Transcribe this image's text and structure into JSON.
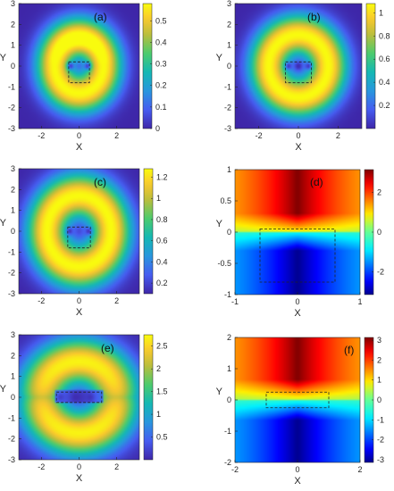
{
  "chart_data": [
    {
      "panel_label": "(a)",
      "type": "heatmap",
      "field": "ring",
      "xlabel": "X",
      "ylabel": "Y",
      "xlim": [
        -3.2,
        3.2
      ],
      "ylim": [
        -3,
        3
      ],
      "xticks": [
        -2,
        0,
        2
      ],
      "yticks": [
        -3,
        -2,
        -1,
        0,
        1,
        2,
        3
      ],
      "colorbar": {
        "range": [
          0,
          0.58
        ],
        "ticks": [
          0,
          0.1,
          0.2,
          0.3,
          0.4,
          0.5
        ],
        "tick_labels": [
          "0",
          "0.1",
          "0.2",
          "0.3",
          "0.4",
          "0.5"
        ],
        "colormap": "parula"
      },
      "peak_radius": 1.3,
      "ring_width": 1.0,
      "top_boost": 0.2,
      "holes": [
        [
          -0.45,
          0
        ],
        [
          0.45,
          0
        ]
      ],
      "dashed_box": {
        "x": [
          -0.55,
          0.55
        ],
        "y": [
          -0.8,
          0.2
        ]
      }
    },
    {
      "panel_label": "(b)",
      "type": "heatmap",
      "field": "ring",
      "xlabel": "X",
      "ylabel": "Y",
      "xlim": [
        -3.2,
        3.2
      ],
      "ylim": [
        -3,
        3
      ],
      "xticks": [
        -2,
        0,
        2
      ],
      "yticks": [
        -3,
        -2,
        -1,
        0,
        1,
        2,
        3
      ],
      "colorbar": {
        "range": [
          0,
          1.08
        ],
        "ticks": [
          0.2,
          0.4,
          0.6,
          0.8,
          1
        ],
        "tick_labels": [
          "0.2",
          "0.4",
          "0.6",
          "0.8",
          "1"
        ],
        "colormap": "parula"
      },
      "peak_radius": 1.5,
      "ring_width": 1.0,
      "top_boost": 0.0,
      "holes": [
        [
          -0.5,
          0
        ],
        [
          0,
          0
        ],
        [
          0.5,
          0
        ]
      ],
      "dashed_box": {
        "x": [
          -0.65,
          0.65
        ],
        "y": [
          -0.8,
          0.2
        ]
      }
    },
    {
      "panel_label": "(c)",
      "type": "heatmap",
      "field": "ring",
      "xlabel": "X",
      "ylabel": "Y",
      "xlim": [
        -3.2,
        3.2
      ],
      "ylim": [
        -3,
        3
      ],
      "xticks": [
        -2,
        0,
        2
      ],
      "yticks": [
        -3,
        -2,
        -1,
        0,
        1,
        2,
        3
      ],
      "colorbar": {
        "range": [
          0.1,
          1.28
        ],
        "ticks": [
          0.2,
          0.4,
          0.6,
          0.8,
          1,
          1.2
        ],
        "tick_labels": [
          "0.2",
          "0.4",
          "0.6",
          "0.8",
          "1",
          "1.2"
        ],
        "colormap": "parula"
      },
      "peak_radius": 1.7,
      "ring_width": 1.1,
      "top_boost": 0.0,
      "holes": [
        [
          -0.5,
          0
        ],
        [
          0.5,
          0
        ]
      ],
      "dashed_box": {
        "x": [
          -0.6,
          0.6
        ],
        "y": [
          -0.8,
          0.2
        ]
      }
    },
    {
      "panel_label": "(d)",
      "type": "heatmap",
      "field": "phase",
      "xlabel": "X",
      "ylabel": "Y",
      "xlim": [
        -1,
        1
      ],
      "ylim": [
        -1,
        1
      ],
      "xticks": [
        -1,
        0,
        1
      ],
      "yticks": [
        -1,
        -0.5,
        0,
        0.5,
        1
      ],
      "colorbar": {
        "range": [
          -3.14,
          3.14
        ],
        "ticks": [
          -2,
          0,
          2
        ],
        "tick_labels": [
          "-2",
          "0",
          "2"
        ],
        "colormap": "jet"
      },
      "sources": [
        [
          -0.42,
          0.02
        ],
        [
          0.42,
          0.02
        ]
      ],
      "dashed_box": {
        "x": [
          -0.6,
          0.6
        ],
        "y": [
          -0.8,
          0.05
        ]
      }
    },
    {
      "panel_label": "(e)",
      "type": "heatmap",
      "field": "ellipse",
      "xlabel": "X",
      "ylabel": "Y",
      "xlim": [
        -3.2,
        3.2
      ],
      "ylim": [
        -3,
        3
      ],
      "xticks": [
        -2,
        0,
        2
      ],
      "yticks": [
        -3,
        -2,
        -1,
        0,
        1,
        2,
        3
      ],
      "colorbar": {
        "range": [
          0,
          2.75
        ],
        "ticks": [
          0.5,
          1,
          1.5,
          2,
          2.5
        ],
        "tick_labels": [
          "0.5",
          "1",
          "1.5",
          "2",
          "2.5"
        ],
        "colormap": "parula"
      },
      "holes": [
        [
          -1,
          0
        ],
        [
          -0.2,
          0
        ],
        [
          0.6,
          0
        ]
      ],
      "dashed_box": {
        "x": [
          -1.2,
          1.2
        ],
        "y": [
          -0.25,
          0.25
        ]
      }
    },
    {
      "panel_label": "(f)",
      "type": "heatmap",
      "field": "phase",
      "xlabel": "X",
      "ylabel": "Y",
      "xlim": [
        -2,
        2
      ],
      "ylim": [
        -2,
        2
      ],
      "xticks": [
        -2,
        0,
        2
      ],
      "yticks": [
        -2,
        -1,
        0,
        1,
        2
      ],
      "colorbar": {
        "range": [
          -3.14,
          3.14
        ],
        "ticks": [
          -3,
          -2,
          -1,
          0,
          1,
          2,
          3
        ],
        "tick_labels": [
          "-3",
          "-2",
          "-1",
          "0",
          "1",
          "2",
          "3"
        ],
        "colormap": "jet"
      },
      "sources": [
        [
          -1.1,
          0
        ],
        [
          0,
          0
        ],
        [
          1.1,
          0
        ]
      ],
      "dashed_box": {
        "x": [
          -1,
          1
        ],
        "y": [
          -0.25,
          0.25
        ]
      }
    }
  ]
}
